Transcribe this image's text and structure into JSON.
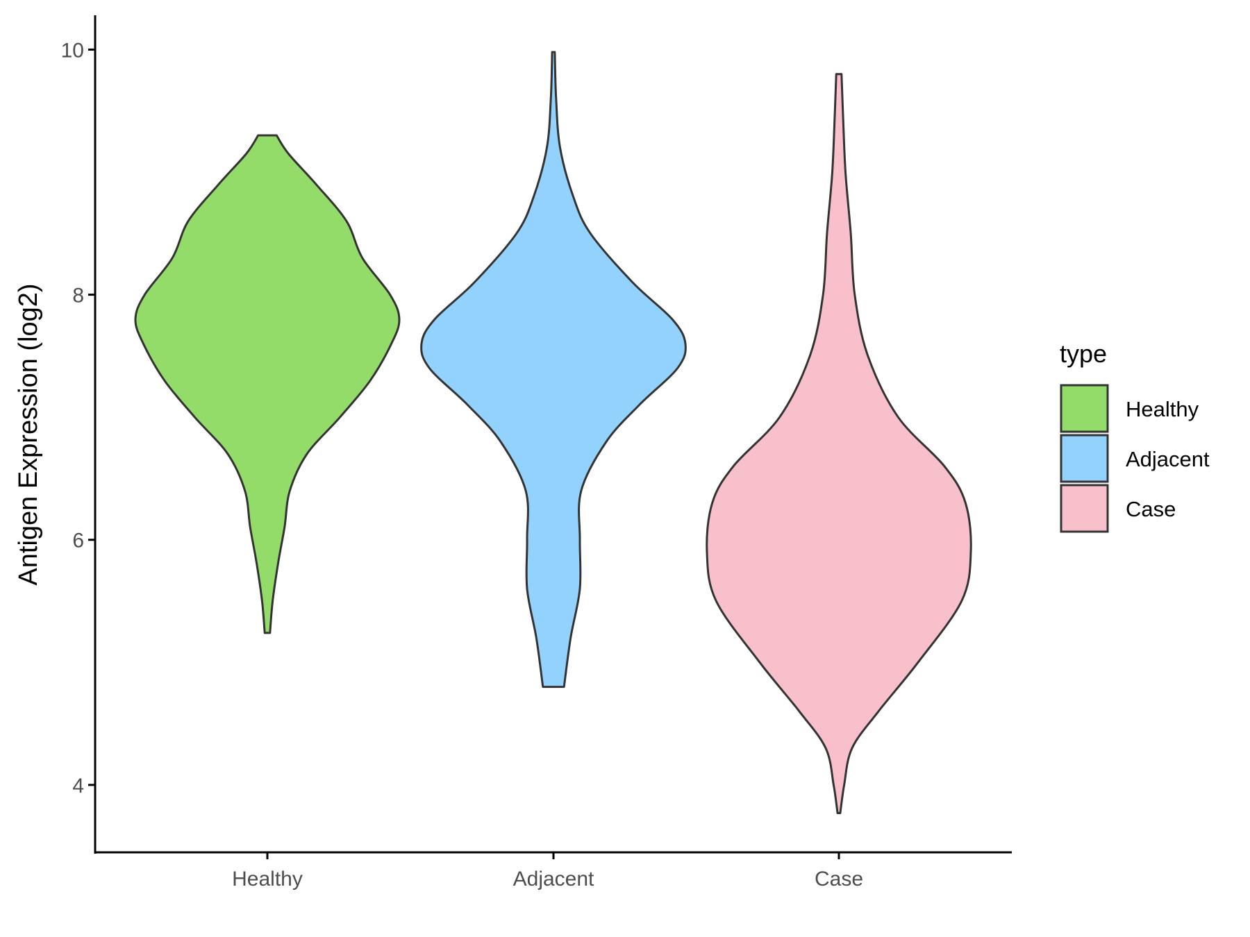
{
  "chart_data": {
    "type": "violin",
    "title": "",
    "xlabel": "",
    "ylabel": "Antigen Expression (log2)",
    "ylim": [
      3.45,
      10.28
    ],
    "yticks": [
      4,
      6,
      8,
      10
    ],
    "grid": false,
    "categories": [
      "Healthy",
      "Adjacent",
      "Case"
    ],
    "legend": {
      "title": "type",
      "position": "right",
      "entries": [
        "Healthy",
        "Adjacent",
        "Case"
      ]
    },
    "colors": {
      "Healthy": "#93dc6a",
      "Adjacent": "#93d2fd",
      "Case": "#f7c0cb",
      "outline": "#333333",
      "axis": "#000000"
    },
    "series": [
      {
        "category": "Healthy",
        "min": 5.24,
        "max": 9.3,
        "profile": [
          [
            5.24,
            0.02
          ],
          [
            5.5,
            0.04
          ],
          [
            5.8,
            0.08
          ],
          [
            6.1,
            0.13
          ],
          [
            6.4,
            0.17
          ],
          [
            6.7,
            0.3
          ],
          [
            7.0,
            0.55
          ],
          [
            7.3,
            0.78
          ],
          [
            7.6,
            0.94
          ],
          [
            7.8,
            1.0
          ],
          [
            8.0,
            0.93
          ],
          [
            8.3,
            0.72
          ],
          [
            8.6,
            0.6
          ],
          [
            8.9,
            0.37
          ],
          [
            9.15,
            0.16
          ],
          [
            9.3,
            0.07
          ]
        ]
      },
      {
        "category": "Adjacent",
        "min": 4.8,
        "max": 9.98,
        "profile": [
          [
            4.8,
            0.08
          ],
          [
            5.2,
            0.13
          ],
          [
            5.6,
            0.2
          ],
          [
            6.0,
            0.2
          ],
          [
            6.4,
            0.21
          ],
          [
            6.8,
            0.4
          ],
          [
            7.1,
            0.65
          ],
          [
            7.4,
            0.94
          ],
          [
            7.6,
            1.0
          ],
          [
            7.8,
            0.9
          ],
          [
            8.1,
            0.6
          ],
          [
            8.5,
            0.28
          ],
          [
            8.8,
            0.15
          ],
          [
            9.2,
            0.05
          ],
          [
            9.6,
            0.02
          ],
          [
            9.98,
            0.01
          ]
        ]
      },
      {
        "category": "Case",
        "min": 3.77,
        "max": 9.8,
        "profile": [
          [
            3.77,
            0.01
          ],
          [
            4.0,
            0.04
          ],
          [
            4.3,
            0.1
          ],
          [
            4.6,
            0.3
          ],
          [
            5.0,
            0.6
          ],
          [
            5.5,
            0.93
          ],
          [
            5.9,
            1.0
          ],
          [
            6.3,
            0.96
          ],
          [
            6.6,
            0.8
          ],
          [
            7.0,
            0.45
          ],
          [
            7.5,
            0.22
          ],
          [
            8.0,
            0.12
          ],
          [
            8.5,
            0.09
          ],
          [
            9.0,
            0.05
          ],
          [
            9.5,
            0.03
          ],
          [
            9.8,
            0.02
          ]
        ]
      }
    ]
  }
}
